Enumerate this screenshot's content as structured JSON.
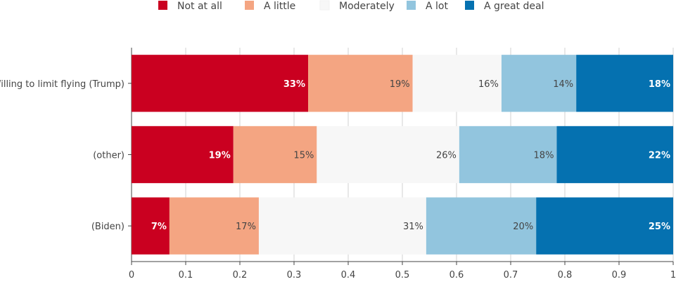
{
  "chart_data": {
    "type": "bar",
    "orientation": "horizontal",
    "stacked": true,
    "categories": [
      "Willing to limit flying (Trump)",
      "(other)",
      "(Biden)"
    ],
    "series": [
      {
        "name": "Not at all",
        "color": "#ca0020",
        "values": [
          0.326,
          0.188,
          0.07
        ],
        "labels": [
          "33%",
          "19%",
          "7%"
        ]
      },
      {
        "name": "A little",
        "color": "#f4a582",
        "values": [
          0.193,
          0.154,
          0.165
        ],
        "labels": [
          "19%",
          "15%",
          "17%"
        ]
      },
      {
        "name": "Moderately",
        "color": "#f7f7f7",
        "values": [
          0.164,
          0.263,
          0.309
        ],
        "labels": [
          "16%",
          "26%",
          "31%"
        ]
      },
      {
        "name": "A lot",
        "color": "#92c5de",
        "values": [
          0.138,
          0.18,
          0.203
        ],
        "labels": [
          "14%",
          "18%",
          "20%"
        ]
      },
      {
        "name": "A great deal",
        "color": "#0571b0",
        "values": [
          0.179,
          0.215,
          0.253
        ],
        "labels": [
          "18%",
          "22%",
          "25%"
        ]
      }
    ],
    "xlim": [
      0,
      1
    ],
    "xticks": [
      "0",
      "0.1",
      "0.2",
      "0.3",
      "0.4",
      "0.5",
      "0.6",
      "0.7",
      "0.8",
      "0.9",
      "1"
    ],
    "grid": true,
    "legend": "top-center",
    "title": "",
    "xlabel": "",
    "ylabel": ""
  }
}
